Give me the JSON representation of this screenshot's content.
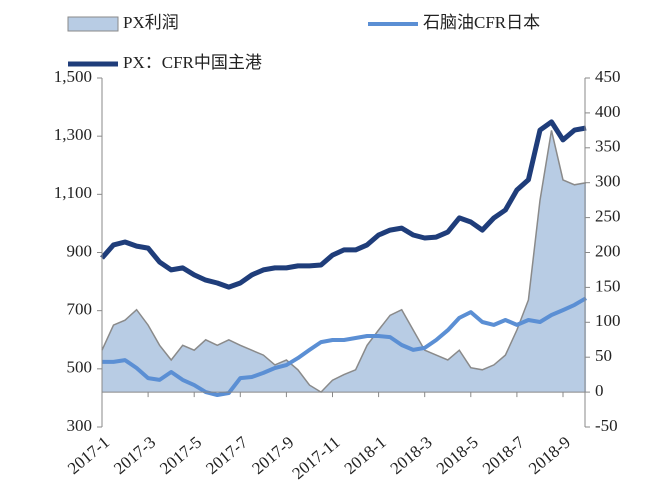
{
  "chart_data": {
    "type": "line",
    "categories": [
      "2017-1",
      null,
      null,
      null,
      "2017-3",
      null,
      null,
      null,
      "2017-5",
      null,
      null,
      null,
      "2017-7",
      null,
      null,
      null,
      "2017-9",
      null,
      null,
      null,
      "2017-11",
      null,
      null,
      null,
      "2018-1",
      null,
      null,
      null,
      "2018-3",
      null,
      null,
      null,
      "2018-5",
      null,
      null,
      null,
      "2018-7",
      null,
      null,
      null,
      "2018-9",
      null,
      null
    ],
    "series": [
      {
        "name": "PX利润",
        "type": "area",
        "axis": "y2",
        "color": "#b8cce4",
        "values": [
          60,
          96,
          103,
          118,
          96,
          67,
          46,
          67,
          60,
          75,
          67,
          75,
          67,
          60,
          53,
          39,
          46,
          32,
          10,
          0,
          17,
          25,
          32,
          67,
          89,
          110,
          118,
          89,
          60,
          53,
          46,
          60,
          35,
          32,
          39,
          53,
          89,
          132,
          275,
          375,
          304,
          297,
          300
        ]
      },
      {
        "name": "石脑油CFR日本",
        "type": "line",
        "color": "#5b8fd4",
        "values": [
          524,
          524,
          530,
          503,
          468,
          462,
          489,
          462,
          444,
          420,
          410,
          417,
          468,
          472,
          486,
          503,
          513,
          537,
          565,
          592,
          599,
          599,
          606,
          613,
          613,
          609,
          582,
          565,
          572,
          599,
          633,
          675,
          695,
          661,
          651,
          668,
          651,
          668,
          661,
          685,
          702,
          720,
          743
        ]
      },
      {
        "name": "PX：CFR中国主港",
        "type": "line",
        "color": "#1f3d7a",
        "values": [
          881,
          926,
          936,
          922,
          915,
          867,
          840,
          847,
          823,
          805,
          795,
          781,
          795,
          823,
          840,
          847,
          847,
          854,
          854,
          857,
          891,
          909,
          909,
          926,
          960,
          977,
          984,
          960,
          950,
          953,
          970,
          1019,
          1005,
          977,
          1019,
          1046,
          1115,
          1150,
          1321,
          1349,
          1287,
          1321,
          1328
        ]
      }
    ],
    "ylim": [
      300,
      1500
    ],
    "yticks": [
      300,
      500,
      700,
      900,
      {
        "value": 1100,
        "label": "1,100"
      },
      {
        "value": 1300,
        "label": "1,300"
      },
      {
        "value": 1500,
        "label": "1,500"
      }
    ],
    "y2lim": [
      -50,
      450
    ],
    "y2ticks": [
      -50,
      0,
      50,
      100,
      150,
      200,
      250,
      300,
      350,
      400,
      450
    ],
    "grid": false
  }
}
